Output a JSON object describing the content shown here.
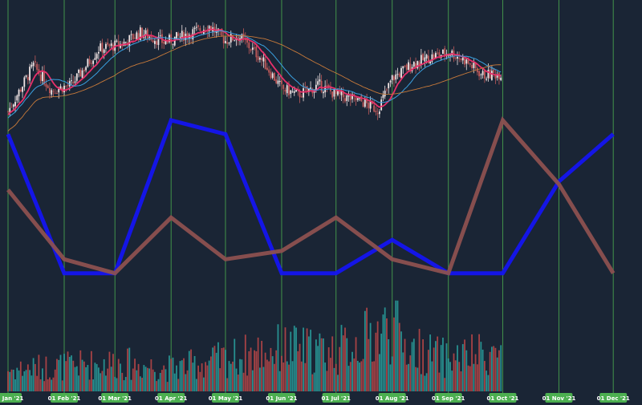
{
  "colors": {
    "background": "#1a2535",
    "gridline": "#4caf50",
    "candle_up": "#f2e6e6",
    "candle_down": "#c25a5a",
    "sma_fast": "#e8306a",
    "sma_mid": "#3aa0e0",
    "sma_slow": "#c87a3a",
    "overlay_blue": "#1414f0",
    "overlay_brown": "#8c5050",
    "volume_up": "#2aa3a0",
    "volume_down": "#c04848",
    "date_tag": "#4caf50"
  },
  "chart_data": {
    "type": "line",
    "title": "",
    "xlabel": "",
    "ylabel": "",
    "grid": true,
    "x_tick_labels": [
      "01 Jan '21",
      "01 Feb '21",
      "01 Mar '21",
      "01 Apr '21",
      "01 May '21",
      "01 Jun '21",
      "01 Jul '21",
      "01 Aug '21",
      "01 Sep '21",
      "01 Oct '21",
      "01 Nov '21",
      "01 Dec '21"
    ],
    "price": {
      "style": "candlestick",
      "ylim": [
        0,
        100
      ],
      "anchors": [
        [
          "2021-01-01",
          42
        ],
        [
          "2021-01-15",
          70
        ],
        [
          "2021-01-25",
          55
        ],
        [
          "2021-02-05",
          58
        ],
        [
          "2021-02-20",
          80
        ],
        [
          "2021-03-05",
          83
        ],
        [
          "2021-03-15",
          90
        ],
        [
          "2021-03-28",
          84
        ],
        [
          "2021-04-15",
          91
        ],
        [
          "2021-04-22",
          94
        ],
        [
          "2021-05-01",
          85
        ],
        [
          "2021-05-08",
          88
        ],
        [
          "2021-05-20",
          75
        ],
        [
          "2021-06-01",
          56
        ],
        [
          "2021-06-10",
          52
        ],
        [
          "2021-06-22",
          58
        ],
        [
          "2021-07-01",
          52
        ],
        [
          "2021-07-15",
          48
        ],
        [
          "2021-07-24",
          43
        ],
        [
          "2021-08-01",
          62
        ],
        [
          "2021-08-12",
          71
        ],
        [
          "2021-08-25",
          76
        ],
        [
          "2021-09-02",
          78
        ],
        [
          "2021-09-10",
          73
        ],
        [
          "2021-09-20",
          64
        ],
        [
          "2021-09-30",
          65
        ]
      ]
    },
    "overlay_series": [
      {
        "color": "#1414f0",
        "points": [
          [
            "2021-01-01",
            55
          ],
          [
            "2021-02-01",
            5
          ],
          [
            "2021-03-01",
            5
          ],
          [
            "2021-04-01",
            60
          ],
          [
            "2021-05-01",
            55
          ],
          [
            "2021-06-01",
            5
          ],
          [
            "2021-07-01",
            5
          ],
          [
            "2021-08-01",
            17
          ],
          [
            "2021-09-01",
            5
          ],
          [
            "2021-10-01",
            5
          ],
          [
            "2021-11-01",
            38
          ],
          [
            "2021-12-01",
            55
          ]
        ]
      },
      {
        "color": "#8c5050",
        "points": [
          [
            "2021-01-01",
            35
          ],
          [
            "2021-02-01",
            10
          ],
          [
            "2021-03-01",
            5
          ],
          [
            "2021-04-01",
            25
          ],
          [
            "2021-05-01",
            10
          ],
          [
            "2021-06-01",
            13
          ],
          [
            "2021-07-01",
            25
          ],
          [
            "2021-08-01",
            10
          ],
          [
            "2021-09-01",
            5
          ],
          [
            "2021-10-01",
            60
          ],
          [
            "2021-11-01",
            37
          ],
          [
            "2021-12-01",
            5
          ]
        ]
      }
    ],
    "volume": {
      "style": "histogram",
      "note_relative": "relative heights 0-1",
      "anchors": [
        [
          "2021-01-01",
          0.3
        ],
        [
          "2021-02-01",
          0.35
        ],
        [
          "2021-03-01",
          0.4
        ],
        [
          "2021-04-01",
          0.32
        ],
        [
          "2021-05-01",
          0.45
        ],
        [
          "2021-06-01",
          0.6
        ],
        [
          "2021-07-01",
          0.55
        ],
        [
          "2021-08-01",
          0.9
        ],
        [
          "2021-08-10",
          0.6
        ],
        [
          "2021-09-01",
          0.45
        ],
        [
          "2021-09-15",
          0.5
        ],
        [
          "2021-09-30",
          0.55
        ]
      ]
    }
  }
}
